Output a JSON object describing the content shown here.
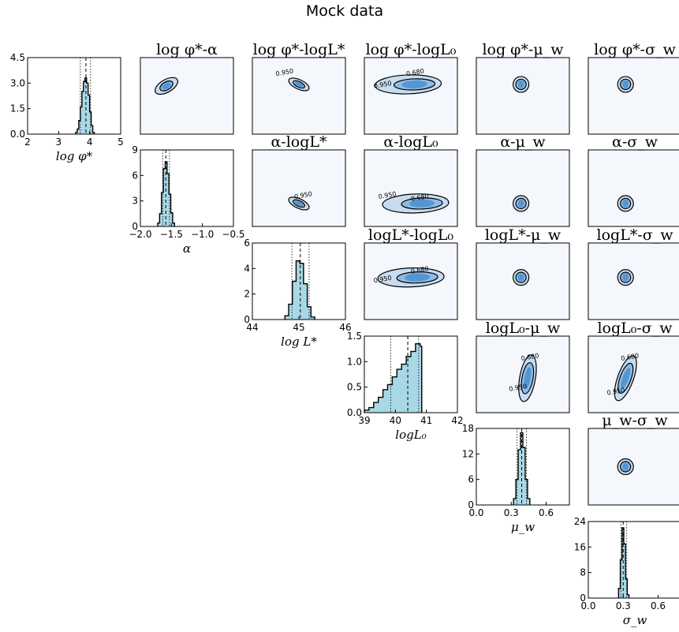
{
  "title": "Mock data",
  "chart_data": [
    {
      "type": "histogram",
      "xlabel": "log φ*",
      "xlim": [
        2,
        5
      ],
      "xticks": [
        "2",
        "3",
        "4",
        "5"
      ],
      "ylim": [
        0,
        4.5
      ],
      "yticks": [
        "0.0",
        "1.5",
        "3.0",
        "4.5"
      ],
      "bins": [
        3.55,
        3.6,
        3.65,
        3.7,
        3.75,
        3.8,
        3.85,
        3.9,
        3.95,
        4.0,
        4.05,
        4.1,
        4.15
      ],
      "counts": [
        0.1,
        0.3,
        0.8,
        1.6,
        2.5,
        3.1,
        3.3,
        3.0,
        2.3,
        1.3,
        0.5,
        0.1
      ],
      "median": 3.88,
      "quantiles": [
        3.7,
        4.03
      ]
    },
    {
      "type": "histogram",
      "xlabel": "α",
      "xlim": [
        -2.0,
        -0.5
      ],
      "xticks": [
        "−2.0",
        "−1.5",
        "−1.0",
        "−0.5"
      ],
      "ylim": [
        0,
        9
      ],
      "yticks": [
        "0",
        "3",
        "6",
        "9"
      ],
      "bins": [
        -1.72,
        -1.69,
        -1.66,
        -1.63,
        -1.6,
        -1.57,
        -1.54,
        -1.51,
        -1.48,
        -1.45
      ],
      "counts": [
        0.4,
        1.5,
        4.0,
        6.8,
        7.6,
        6.2,
        3.8,
        1.6,
        0.4
      ],
      "median": -1.59,
      "quantiles": [
        -1.64,
        -1.53
      ]
    },
    {
      "type": "histogram",
      "xlabel": "log L*",
      "xlim": [
        44,
        46
      ],
      "xticks": [
        "44",
        "45",
        "46"
      ],
      "ylim": [
        0,
        6
      ],
      "yticks": [
        "0",
        "2",
        "4",
        "6"
      ],
      "bins": [
        44.7,
        44.78,
        44.86,
        44.94,
        45.02,
        45.1,
        45.18,
        45.26,
        45.34
      ],
      "counts": [
        0.3,
        1.2,
        3.0,
        4.6,
        4.4,
        2.8,
        1.0,
        0.2
      ],
      "median": 45.03,
      "quantiles": [
        44.85,
        45.22
      ]
    },
    {
      "type": "histogram",
      "xlabel": "logL₀",
      "xlim": [
        39,
        42
      ],
      "xticks": [
        "39",
        "40",
        "41",
        "42"
      ],
      "ylim": [
        0,
        1.5
      ],
      "yticks": [
        "0.0",
        "0.5",
        "1.0",
        "1.5"
      ],
      "bins": [
        39.0,
        39.15,
        39.3,
        39.45,
        39.6,
        39.75,
        39.9,
        40.05,
        40.2,
        40.35,
        40.5,
        40.65,
        40.8,
        40.85
      ],
      "counts": [
        0.05,
        0.1,
        0.2,
        0.3,
        0.45,
        0.55,
        0.7,
        0.85,
        0.95,
        1.1,
        1.2,
        1.35,
        1.3
      ],
      "median": 40.4,
      "quantiles": [
        39.85,
        40.75
      ]
    },
    {
      "type": "histogram",
      "xlabel": "μ_w",
      "xlim": [
        0.0,
        0.8
      ],
      "xticks": [
        "0.0",
        "0.3",
        "0.6"
      ],
      "ylim": [
        0,
        18
      ],
      "yticks": [
        "0",
        "6",
        "12",
        "18"
      ],
      "bins": [
        0.32,
        0.34,
        0.36,
        0.38,
        0.4,
        0.42,
        0.44,
        0.46
      ],
      "counts": [
        1.5,
        6.0,
        13.0,
        17.0,
        13.5,
        6.0,
        1.5
      ],
      "median": 0.39,
      "quantiles": [
        0.35,
        0.43
      ]
    },
    {
      "type": "histogram",
      "xlabel": "σ_w",
      "xlim": [
        0.0,
        0.8
      ],
      "xticks": [
        "0.0",
        "0.3",
        "0.6"
      ],
      "ylim": [
        0,
        24
      ],
      "yticks": [
        "0",
        "8",
        "16",
        "24"
      ],
      "bins": [
        0.26,
        0.275,
        0.29,
        0.305,
        0.32,
        0.335,
        0.35
      ],
      "counts": [
        3.0,
        12.0,
        22.0,
        17.0,
        6.0,
        1.0
      ],
      "median": 0.3,
      "quantiles": [
        0.28,
        0.33
      ]
    }
  ],
  "pair_panels": [
    {
      "title": "log φ*-α",
      "contour_labels": []
    },
    {
      "title": "log φ*-logL*",
      "contour_labels": [
        "0.950"
      ]
    },
    {
      "title": "log φ*-logL₀",
      "contour_labels": [
        "0.680",
        "0.950"
      ]
    },
    {
      "title": "log φ*-μ_w",
      "contour_labels": []
    },
    {
      "title": "log φ*-σ_w",
      "contour_labels": []
    },
    {
      "title": "α-logL*",
      "contour_labels": [
        "0.950"
      ]
    },
    {
      "title": "α-logL₀",
      "contour_labels": [
        "0.950",
        "0.680"
      ]
    },
    {
      "title": "α-μ_w",
      "contour_labels": []
    },
    {
      "title": "α-σ_w",
      "contour_labels": []
    },
    {
      "title": "logL*-logL₀",
      "contour_labels": [
        "0.680",
        "0.950"
      ]
    },
    {
      "title": "logL*-μ_w",
      "contour_labels": []
    },
    {
      "title": "logL*-σ_w",
      "contour_labels": []
    },
    {
      "title": "logL₀-μ_w",
      "contour_labels": [
        "0.680",
        "0.950"
      ]
    },
    {
      "title": "logL₀-σ_w",
      "contour_labels": [
        "0.680",
        "0.950"
      ]
    },
    {
      "title": "μ_w-σ_w",
      "contour_labels": []
    }
  ],
  "colors": {
    "fill": "#a8d8e6",
    "panel_bg": "#f4f8fd",
    "contour_fill": "#4a8fcf",
    "contour_light": "#c7dcf0"
  }
}
